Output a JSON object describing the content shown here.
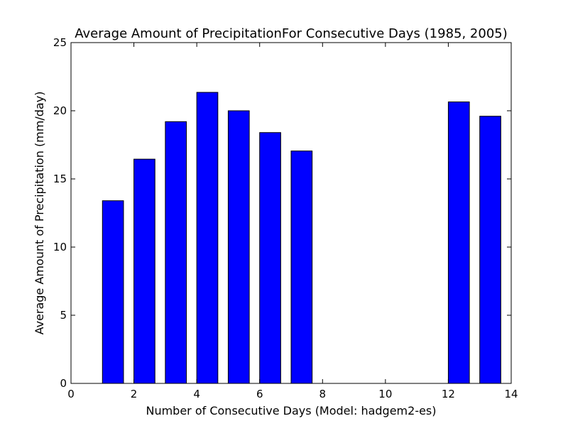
{
  "chart_data": {
    "type": "bar",
    "title": "Average Amount of PrecipitationFor Consecutive Days  (1985, 2005)",
    "xlabel": "Number of Consecutive Days (Model: hadgem2-es)",
    "ylabel": "Average Amount of Precipitation (mm/day)",
    "x": [
      1,
      2,
      3,
      4,
      5,
      6,
      7,
      12,
      13
    ],
    "values": [
      13.4,
      16.45,
      19.2,
      21.35,
      20.0,
      18.4,
      17.05,
      20.65,
      19.6
    ],
    "bar_width": 0.67,
    "xlim": [
      0,
      14
    ],
    "ylim": [
      0,
      25
    ],
    "xticks": [
      0,
      2,
      4,
      6,
      8,
      10,
      12,
      14
    ],
    "yticks": [
      0,
      5,
      10,
      15,
      20,
      25
    ],
    "bar_color": "#0000ff",
    "grid": false
  }
}
